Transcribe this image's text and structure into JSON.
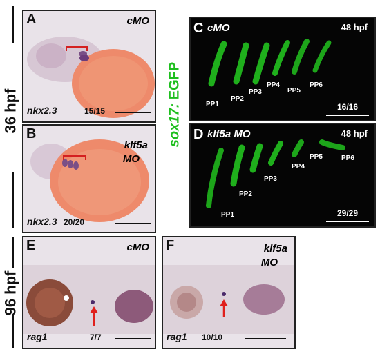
{
  "side_labels": {
    "top": "36 hpf",
    "bottom": "96 hpf",
    "marker_prefix": "sox17:",
    "marker_suffix": " EGFP"
  },
  "panels": {
    "A": {
      "letter": "A",
      "condition": "cMO",
      "gene": "nkx2.3",
      "count": "15/15"
    },
    "B": {
      "letter": "B",
      "condition_line1": "klf5a",
      "condition_line2": "MO",
      "gene": "nkx2.3",
      "count": "20/20"
    },
    "C": {
      "letter": "C",
      "condition": "cMO",
      "stage": "48 hpf",
      "count": "16/16",
      "arches": [
        "PP1",
        "PP2",
        "PP3",
        "PP4",
        "PP5",
        "PP6"
      ]
    },
    "D": {
      "letter": "D",
      "condition": "klf5a MO",
      "stage": "48 hpf",
      "count": "29/29",
      "arches": [
        "PP1",
        "PP2",
        "PP3",
        "PP4",
        "PP5",
        "PP6"
      ]
    },
    "E": {
      "letter": "E",
      "condition": "cMO",
      "gene": "rag1",
      "count": "7/7"
    },
    "F": {
      "letter": "F",
      "condition_line1": "klf5a",
      "condition_line2": "MO",
      "gene": "rag1",
      "count": "10/10"
    }
  },
  "colors": {
    "egfp": "#22c21f",
    "marker_text": "#1fbf1f",
    "arrow": "#e0201c",
    "bracket": "#d42020",
    "yolk": "#e88a6a"
  }
}
